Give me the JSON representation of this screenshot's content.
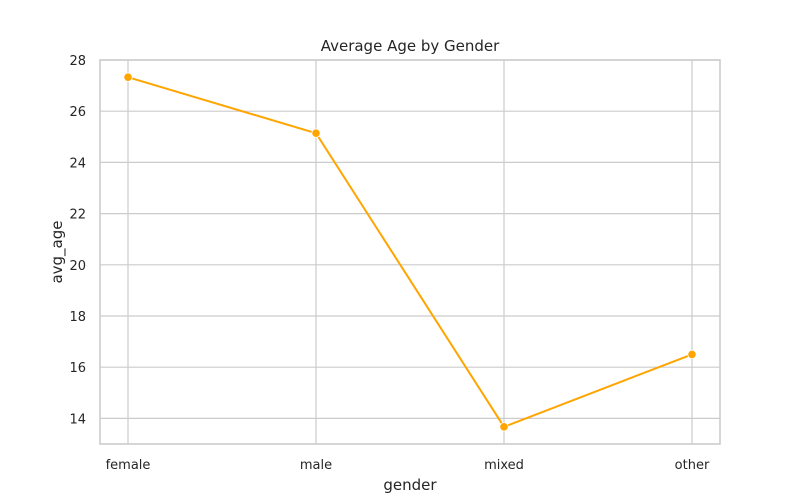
{
  "chart_data": {
    "type": "line",
    "title": "Average Age by Gender",
    "xlabel": "gender",
    "ylabel": "avg_age",
    "categories": [
      "female",
      "male",
      "mixed",
      "other"
    ],
    "series": [
      {
        "values": [
          27.33,
          25.14,
          13.67,
          16.5
        ]
      }
    ],
    "ylim": [
      13,
      28
    ],
    "yticks": [
      14,
      16,
      18,
      20,
      22,
      24,
      26,
      28
    ],
    "ytick_labels": [
      "14",
      "16",
      "18",
      "20",
      "22",
      "24",
      "26",
      "28"
    ],
    "grid": true,
    "colors": {
      "line": "#ffa500",
      "grid": "#cccccc",
      "axes_edge": "#cccccc",
      "text": "#262626",
      "background": "#ffffff"
    }
  }
}
